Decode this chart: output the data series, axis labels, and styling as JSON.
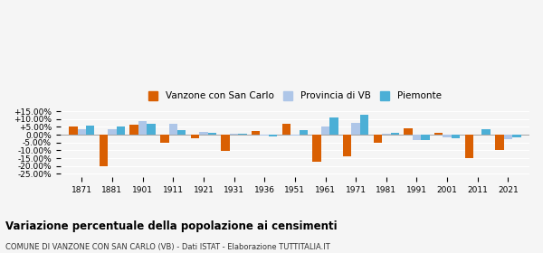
{
  "years": [
    1871,
    1881,
    1901,
    1911,
    1921,
    1931,
    1936,
    1951,
    1961,
    1971,
    1981,
    1991,
    2001,
    2011,
    2021
  ],
  "vanzone": [
    5.5,
    -20.0,
    6.2,
    -5.0,
    -2.5,
    -10.5,
    2.5,
    7.0,
    -17.5,
    -13.5,
    -5.0,
    4.0,
    1.2,
    -15.0,
    -10.0
  ],
  "provincia_vb": [
    3.5,
    3.5,
    8.5,
    6.8,
    2.0,
    0.5,
    -0.5,
    -0.5,
    5.5,
    7.5,
    0.5,
    -3.5,
    -1.5,
    0.2,
    -3.0
  ],
  "piemonte": [
    6.0,
    5.2,
    7.2,
    3.0,
    1.0,
    0.5,
    -1.0,
    3.0,
    11.0,
    13.0,
    1.2,
    -3.5,
    -2.0,
    3.5,
    -1.5
  ],
  "vanzone_color": "#d95f02",
  "provincia_color": "#aec6e8",
  "piemonte_color": "#4bafd6",
  "title": "Variazione percentuale della popolazione ai censimenti",
  "subtitle": "COMUNE DI VANZONE CON SAN CARLO (VB) - Dati ISTAT - Elaborazione TUTTITALIA.IT",
  "legend_labels": [
    "Vanzone con San Carlo",
    "Provincia di VB",
    "Piemonte"
  ],
  "ylim": [
    -27,
    17
  ],
  "yticks": [
    -25.0,
    -20.0,
    -15.0,
    -10.0,
    -5.0,
    0.0,
    5.0,
    10.0,
    15.0
  ],
  "background_color": "#f5f5f5"
}
